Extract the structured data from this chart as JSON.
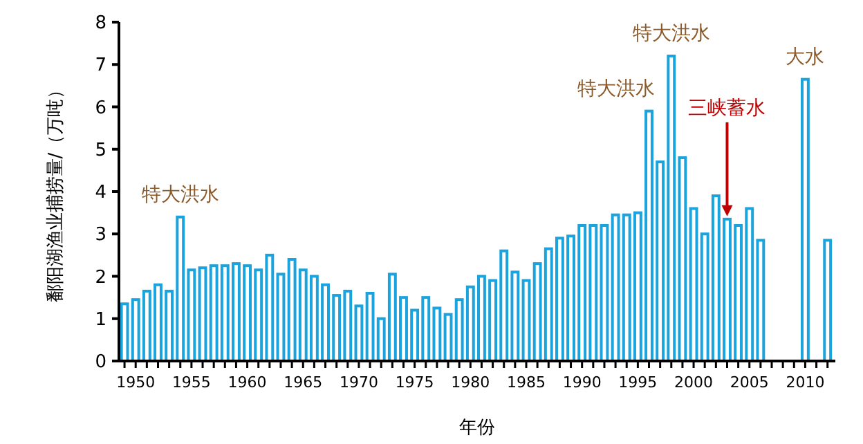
{
  "chart_data": {
    "type": "bar",
    "xlabel": "年份",
    "ylabel": "鄱阳湖渔业捕捞量/（万吨）",
    "x": [
      1949,
      1950,
      1951,
      1952,
      1953,
      1954,
      1955,
      1956,
      1957,
      1958,
      1959,
      1960,
      1961,
      1962,
      1963,
      1964,
      1965,
      1966,
      1967,
      1968,
      1969,
      1970,
      1971,
      1972,
      1973,
      1974,
      1975,
      1976,
      1977,
      1978,
      1979,
      1980,
      1981,
      1982,
      1983,
      1984,
      1985,
      1986,
      1987,
      1988,
      1989,
      1990,
      1991,
      1992,
      1993,
      1994,
      1995,
      1996,
      1997,
      1998,
      1999,
      2000,
      2001,
      2002,
      2003,
      2004,
      2005,
      2006,
      2010,
      2012
    ],
    "values": [
      1.35,
      1.45,
      1.65,
      1.8,
      1.65,
      3.4,
      2.15,
      2.2,
      2.25,
      2.25,
      2.3,
      2.25,
      2.15,
      2.5,
      2.05,
      2.4,
      2.15,
      2.0,
      1.8,
      1.55,
      1.65,
      1.3,
      1.6,
      1.0,
      2.05,
      1.5,
      1.2,
      1.5,
      1.25,
      1.1,
      1.45,
      1.75,
      2.0,
      1.9,
      2.6,
      2.1,
      1.9,
      2.3,
      2.65,
      2.9,
      2.95,
      3.2,
      3.2,
      3.2,
      3.45,
      3.45,
      3.5,
      5.9,
      4.7,
      7.2,
      4.8,
      3.6,
      3.0,
      3.9,
      3.35,
      3.2,
      3.6,
      2.85,
      6.65,
      2.85
    ],
    "color": "#1aa3dc",
    "xlim": [
      1948.5,
      2012.7
    ],
    "xticks": [
      {
        "value": 1949,
        "label": null
      },
      1950,
      {
        "value": 1951,
        "label": null
      },
      {
        "value": 1952,
        "label": null
      },
      {
        "value": 1953,
        "label": null
      },
      {
        "value": 1954,
        "label": null
      },
      1955,
      {
        "value": 1956,
        "label": null
      },
      {
        "value": 1957,
        "label": null
      },
      {
        "value": 1958,
        "label": null
      },
      {
        "value": 1959,
        "label": null
      },
      1960,
      {
        "value": 1961,
        "label": null
      },
      {
        "value": 1962,
        "label": null
      },
      {
        "value": 1963,
        "label": null
      },
      {
        "value": 1964,
        "label": null
      },
      1965,
      {
        "value": 1966,
        "label": null
      },
      {
        "value": 1967,
        "label": null
      },
      {
        "value": 1968,
        "label": null
      },
      {
        "value": 1969,
        "label": null
      },
      1970,
      {
        "value": 1971,
        "label": null
      },
      {
        "value": 1972,
        "label": null
      },
      {
        "value": 1973,
        "label": null
      },
      {
        "value": 1974,
        "label": null
      },
      1975,
      {
        "value": 1976,
        "label": null
      },
      {
        "value": 1977,
        "label": null
      },
      {
        "value": 1978,
        "label": null
      },
      {
        "value": 1979,
        "label": null
      },
      1980,
      {
        "value": 1981,
        "label": null
      },
      {
        "value": 1982,
        "label": null
      },
      {
        "value": 1983,
        "label": null
      },
      {
        "value": 1984,
        "label": null
      },
      1985,
      {
        "value": 1986,
        "label": null
      },
      {
        "value": 1987,
        "label": null
      },
      {
        "value": 1988,
        "label": null
      },
      {
        "value": 1989,
        "label": null
      },
      1990,
      {
        "value": 1991,
        "label": null
      },
      {
        "value": 1992,
        "label": null
      },
      {
        "value": 1993,
        "label": null
      },
      {
        "value": 1994,
        "label": null
      },
      1995,
      {
        "value": 1996,
        "label": null
      },
      {
        "value": 1997,
        "label": null
      },
      {
        "value": 1998,
        "label": null
      },
      {
        "value": 1999,
        "label": null
      },
      2000,
      {
        "value": 2001,
        "label": null
      },
      {
        "value": 2002,
        "label": null
      },
      {
        "value": 2003,
        "label": null
      },
      {
        "value": 2004,
        "label": null
      },
      2005,
      {
        "value": 2006,
        "label": null
      },
      {
        "value": 2007,
        "label": null
      },
      {
        "value": 2008,
        "label": null
      },
      {
        "value": 2009,
        "label": null
      },
      2010,
      {
        "value": 2011,
        "label": null
      },
      {
        "value": 2012,
        "label": null
      }
    ],
    "ylim": [
      0,
      8
    ],
    "yticks": [
      0,
      1,
      2,
      3,
      4,
      5,
      6,
      7,
      8
    ],
    "annotations": [
      {
        "text": "特大洪水",
        "x": 1954,
        "y": 3.4
      },
      {
        "text": "特大洪水",
        "x": 1996,
        "y": 5.9
      },
      {
        "text": "特大洪水",
        "x": 1998,
        "y": 7.2
      },
      {
        "text": "三峡蓄水",
        "x": 2003,
        "y": 3.35
      },
      {
        "text": "大水",
        "x": 2010,
        "y": 6.65
      }
    ]
  }
}
